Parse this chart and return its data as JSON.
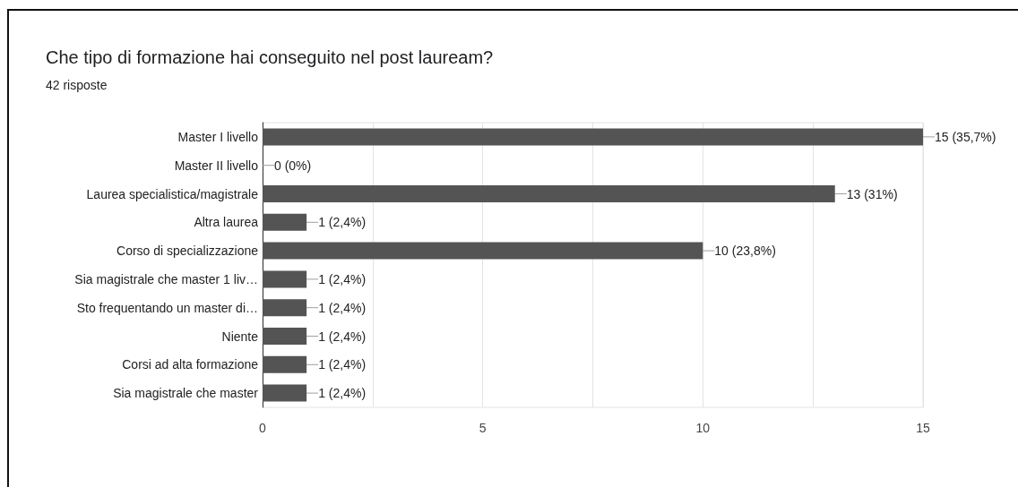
{
  "chart_data": {
    "type": "bar",
    "orientation": "horizontal",
    "title": "Che tipo di formazione hai conseguito nel post lauream?",
    "subtitle": "42 risposte",
    "categories": [
      "Master I livello",
      "Master II livello",
      "Laurea specialistica/magistrale",
      "Altra laurea",
      "Corso di specializzazione",
      "Sia magistrale che master 1 liv…",
      "Sto frequentando un master di…",
      "Niente",
      "Corsi ad alta formazione",
      "Sia magistrale che master"
    ],
    "values": [
      15,
      0,
      13,
      1,
      10,
      1,
      1,
      1,
      1,
      1
    ],
    "color": "#545454",
    "value_labels": [
      "15 (35,7%)",
      "0 (0%)",
      "13 (31%)",
      "1 (2,4%)",
      "10 (23,8%)",
      "1 (2,4%)",
      "1 (2,4%)",
      "1 (2,4%)",
      "1 (2,4%)",
      "1 (2,4%)"
    ],
    "xlim": [
      0,
      15
    ],
    "xticks": [
      0,
      {
        "value": 2.5,
        "label": null
      },
      5,
      {
        "value": 7.5,
        "label": null
      },
      10,
      {
        "value": 12.5,
        "label": null
      },
      15
    ],
    "grid": "x"
  }
}
